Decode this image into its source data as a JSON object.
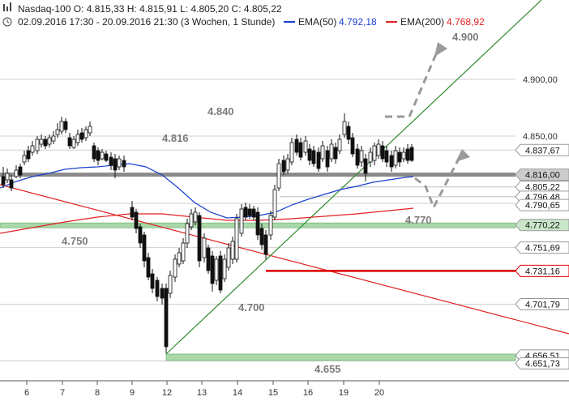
{
  "header": {
    "line1": "Nasdaq-100   O: 4.815,33  H: 4.815,91  L: 4.805,20  C: 4.805,22",
    "line2": "02.09.2016 17:30 - 20.09.2016 21:30 (3 Wochen, 1 Stunde)",
    "ema50_label": "EMA(50)",
    "ema50_value": "4.792,18",
    "ema200_label": "EMA(200)",
    "ema200_value": "4.768,92"
  },
  "colors": {
    "ema50": "#1a3fcf",
    "ema200": "#e02020",
    "trendline": "#2a8a2a",
    "downtrend": "#e02020",
    "support_zone": "#a9d8a9",
    "resistance_line": "#8a8a8a",
    "arrow": "#9a9a9a",
    "red_level": "#dd0000"
  },
  "chart_data": {
    "type": "candlestick",
    "y_axis_labels": [
      "4.900,00",
      "4.850,00"
    ],
    "ylim": [
      4645,
      4930
    ],
    "x_tick_labels": [
      "6",
      "7",
      "8",
      "9",
      "12",
      "13",
      "14",
      "15",
      "16",
      "19",
      "20"
    ],
    "level_tags": [
      "4.837,67",
      "4.816,00",
      "4.805,22",
      "4.796,48",
      "4.790,65",
      "4.770,22",
      "4.751,69",
      "4.731,16",
      "4.701,79",
      "4.656,51",
      "4.651,73"
    ],
    "level_annotations": [
      "4.900",
      "4.840",
      "4.816",
      "4.770",
      "4.750",
      "4.700",
      "4.655"
    ],
    "ema50_series_name": "EMA(50)",
    "ema200_series_name": "EMA(200)"
  }
}
